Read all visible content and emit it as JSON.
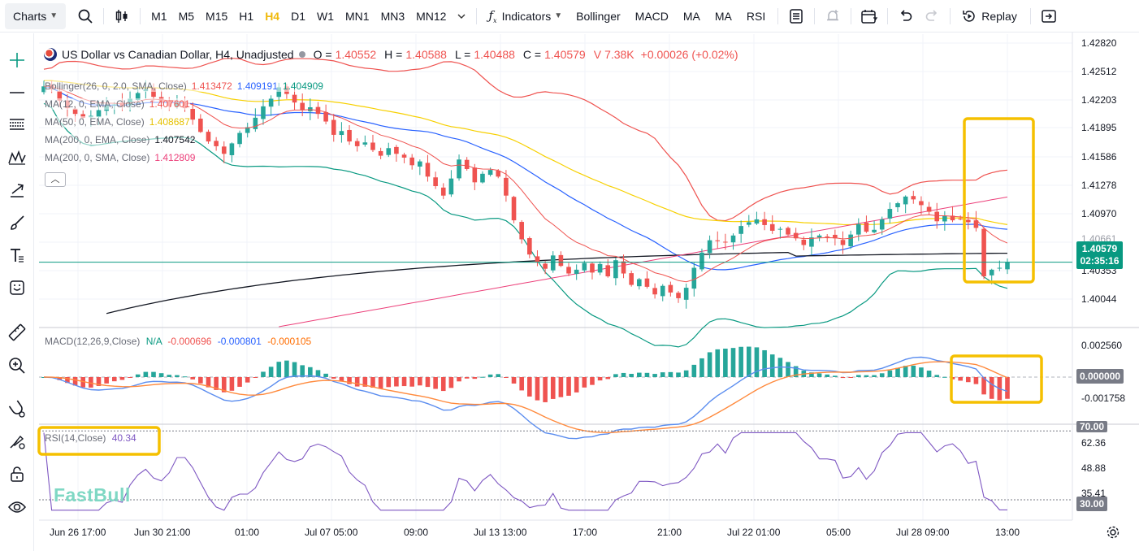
{
  "toolbar": {
    "charts_label": "Charts",
    "intervals": [
      "M1",
      "M5",
      "M15",
      "H1",
      "H4",
      "D1",
      "W1",
      "MN1",
      "MN3",
      "MN12"
    ],
    "active_interval": "H4",
    "indicators_label": "Indicators",
    "quick_indicators": [
      "Bollinger",
      "MACD",
      "MA",
      "MA",
      "RSI"
    ],
    "replay_label": "Replay",
    "icons": [
      "search-icon",
      "candles-icon",
      "chevron-down-icon",
      "function-icon",
      "template-icon",
      "alert-icon",
      "calendar-icon",
      "undo-icon",
      "redo-icon",
      "replay-icon",
      "fullscreen-icon"
    ]
  },
  "left_tools": [
    "crosshair-icon",
    "line-icon",
    "fib-icon",
    "pattern-icon",
    "arrow-tool-icon",
    "brush-icon",
    "text-icon",
    "emoji-icon",
    "ruler-icon",
    "zoom-icon",
    "magnet-icon",
    "stay-drawing-icon",
    "lock-icon",
    "eye-icon"
  ],
  "legend": {
    "symbol": "US Dollar vs Canadian Dollar, H4, Unadjusted",
    "o_label": "O =",
    "o_value": "1.40552",
    "h_label": "H =",
    "h_value": "1.40588",
    "l_label": "L =",
    "l_value": "1.40488",
    "c_label": "C =",
    "c_value": "1.40579",
    "v_label": "V",
    "v_value": "7.38K",
    "change": "+0.00026 (+0.02%)"
  },
  "indicators": [
    {
      "name": "Bollinger(26, 0, 2.0, SMA, Close)",
      "values": [
        "1.413472",
        "1.409191",
        "1.404909"
      ],
      "colors": [
        "#ef5350",
        "#2962ff",
        "#089981"
      ]
    },
    {
      "name": "MA(12, 0, EMA, Close)",
      "values": [
        "1.407601"
      ],
      "colors": [
        "#ef5350"
      ]
    },
    {
      "name": "MA(50, 0, EMA, Close)",
      "values": [
        "1.408687"
      ],
      "colors": [
        "#f7d000"
      ]
    },
    {
      "name": "MA(200, 0, EMA, Close)",
      "values": [
        "1.407542"
      ],
      "colors": [
        "#131722"
      ]
    },
    {
      "name": "MA(200, 0, SMA, Close)",
      "values": [
        "1.412809"
      ],
      "colors": [
        "#ec407a"
      ]
    }
  ],
  "macd_legend": {
    "name": "MACD(12,26,9,Close)",
    "values": [
      "N/A",
      "-0.000696",
      "-0.000801",
      "-0.000105"
    ],
    "colors": [
      "#089981",
      "#ef5350",
      "#2962ff",
      "#ff6d00"
    ]
  },
  "rsi_legend": {
    "name": "RSI(14,Close)",
    "value": "40.34"
  },
  "price_axis": [
    "1.42820",
    "1.42512",
    "1.42203",
    "1.41895",
    "1.41586",
    "1.41278",
    "1.40970",
    "1.40353",
    "1.40044"
  ],
  "price_axis_hidden": "1.40661",
  "last_price": {
    "value": "1.40579",
    "countdown": "02:35:16"
  },
  "macd_axis": [
    "0.002560",
    "-0.001758"
  ],
  "macd_zero": "0.000000",
  "rsi_axis": [
    "62.36",
    "48.88",
    "35.41"
  ],
  "rsi_bands": [
    "70.00",
    "30.00"
  ],
  "time_axis": [
    "Jun 26 17:00",
    "Jun 30 21:00",
    "01:00",
    "Jul 07 05:00",
    "09:00",
    "Jul 13 13:00",
    "17:00",
    "21:00",
    "Jul 22 01:00",
    "05:00",
    "Jul 28 09:00",
    "13:00"
  ],
  "watermark": "FastBull",
  "colors": {
    "up": "#26a69a",
    "down": "#ef5350",
    "accent": "#f0b90b",
    "highlight_box": "#f5c000",
    "rsi": "#7e57c2",
    "last_price_tag": "#089981",
    "zero_tag": "#787b86"
  },
  "chart_data": {
    "type": "candlestick",
    "symbol": "USD/CAD",
    "timeframe": "H4",
    "closes_approx": [
      1.4243,
      1.424,
      1.4228,
      1.422,
      1.4214,
      1.421,
      1.4212,
      1.4218,
      1.4223,
      1.4224,
      1.4222,
      1.423,
      1.4236,
      1.424,
      1.4232,
      1.4226,
      1.4222,
      1.4226,
      1.422,
      1.4208,
      1.4195,
      1.4185,
      1.418,
      1.4172,
      1.4183,
      1.4194,
      1.42,
      1.421,
      1.4222,
      1.423,
      1.4242,
      1.4235,
      1.4226,
      1.4218,
      1.4221,
      1.4214,
      1.4206,
      1.4192,
      1.4196,
      1.4185,
      1.418,
      1.4184,
      1.4176,
      1.417,
      1.4178,
      1.4172,
      1.4168,
      1.416,
      1.4164,
      1.4148,
      1.4138,
      1.4128,
      1.4146,
      1.4166,
      1.4156,
      1.4142,
      1.4151,
      1.4155,
      1.4148,
      1.4128,
      1.4102,
      1.4082,
      1.4066,
      1.4058,
      1.4051,
      1.4065,
      1.4054,
      1.4046,
      1.405,
      1.4057,
      1.4047,
      1.4056,
      1.4043,
      1.406,
      1.4046,
      1.4034,
      1.404,
      1.4032,
      1.4024,
      1.4033,
      1.4026,
      1.402,
      1.4031,
      1.4052,
      1.4068,
      1.4081,
      1.408,
      1.4079,
      1.4086,
      1.4096,
      1.41,
      1.4103,
      1.4097,
      1.4091,
      1.4093,
      1.4087,
      1.4083,
      1.4076,
      1.4084,
      1.4086,
      1.4085,
      1.4083,
      1.4076,
      1.4087,
      1.4098,
      1.409,
      1.4092,
      1.4103,
      1.4114,
      1.412,
      1.4127,
      1.4124,
      1.4118,
      1.4111,
      1.4101,
      1.4107,
      1.4102,
      1.4103,
      1.41,
      1.4094,
      1.4043,
      1.405,
      1.4052,
      1.4058
    ],
    "bollinger": {
      "upper": 1.413472,
      "middle": 1.409191,
      "lower": 1.404909
    },
    "ma": {
      "ema12": 1.407601,
      "ema50": 1.408687,
      "ema200": 1.407542,
      "sma200": 1.412809
    },
    "macd": {
      "histogram": -0.000696,
      "macd": -0.000801,
      "signal": -0.000105
    },
    "rsi": 40.34,
    "ylim": [
      1.399,
      1.4298
    ],
    "rsi_levels": [
      30,
      70
    ]
  }
}
